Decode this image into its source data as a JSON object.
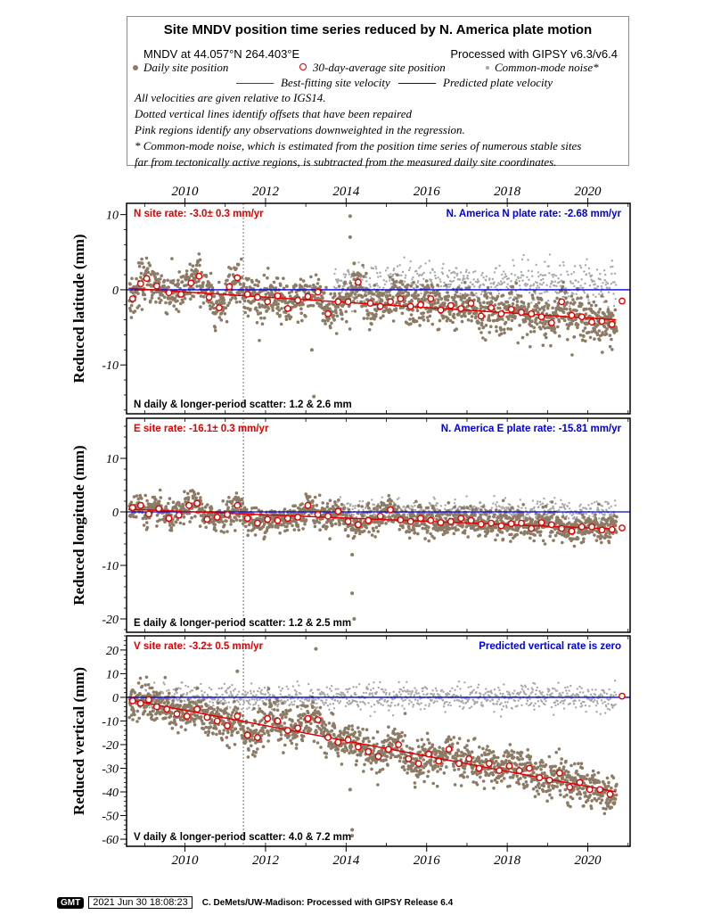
{
  "header": {
    "title": "Site MNDV position time series reduced by N. America plate motion",
    "location": "MNDV at 44.057°N 264.403°E",
    "processed": "Processed with GIPSY v6.3/v6.4",
    "legend": {
      "daily": "Daily site position",
      "avg30": "30-day-average site position",
      "common": "Common-mode noise*",
      "bestfit": "Best-fitting site velocity",
      "predicted": "Predicted plate velocity"
    },
    "notes": [
      "All velocities are given relative to IGS14.",
      "Dotted vertical lines identify offsets that have been repaired",
      "Pink regions identify any observations downweighted in the regression.",
      "* Common-mode noise, which is estimated from the position time series of numerous stable sites",
      "far from tectonically active regions, is subtracted from the measured daily site coordinates."
    ]
  },
  "colors": {
    "daily": "#8c7b65",
    "common": "#a8a8a8",
    "avg": "#e00000",
    "bestfit": "#e00000",
    "plate": "#0000dd",
    "offset_line": "#777777"
  },
  "chart_data": {
    "type": "scatter",
    "x_range": [
      2008.55,
      2021.05
    ],
    "x_ticks": [
      2010,
      2012,
      2014,
      2016,
      2018,
      2020
    ],
    "offset_epochs": [
      2011.45
    ],
    "panels": [
      {
        "id": "north",
        "ylabel": "Reduced latitude (mm)",
        "ylim": [
          -16.5,
          11.5
        ],
        "yticks": [
          10,
          0,
          -10
        ],
        "site_rate": "N site rate:  -3.0± 0.3 mm/yr",
        "plate_rate": "N. America N plate rate: -2.68 mm/yr",
        "scatter_text": "N daily & longer-period scatter:   1.2 &   2.6 mm",
        "plate_line": [
          [
            2008.55,
            0.0
          ],
          [
            2021.05,
            0.0
          ]
        ],
        "fit_line": [
          [
            2008.6,
            0.2
          ],
          [
            2020.7,
            -4.0
          ]
        ],
        "common_mode": true,
        "avg30": [
          [
            2008.7,
            -1.2
          ],
          [
            2008.9,
            0.8
          ],
          [
            2009.05,
            1.5
          ],
          [
            2009.3,
            0.5
          ],
          [
            2009.6,
            -0.4
          ],
          [
            2009.9,
            -0.6
          ],
          [
            2010.15,
            0.9
          ],
          [
            2010.35,
            1.8
          ],
          [
            2010.6,
            -1.0
          ],
          [
            2010.85,
            -2.4
          ],
          [
            2011.1,
            0.4
          ],
          [
            2011.3,
            1.6
          ],
          [
            2011.55,
            -0.6
          ],
          [
            2011.8,
            -1.0
          ],
          [
            2012.05,
            -1.6
          ],
          [
            2012.3,
            -0.8
          ],
          [
            2012.55,
            -2.5
          ],
          [
            2012.8,
            -1.4
          ],
          [
            2013.05,
            -0.9
          ],
          [
            2013.3,
            -0.3
          ],
          [
            2013.55,
            -3.2
          ],
          [
            2013.8,
            -1.6
          ],
          [
            2014.05,
            -1.6
          ],
          [
            2014.3,
            1.0
          ],
          [
            2014.6,
            -1.8
          ],
          [
            2014.85,
            -2.2
          ],
          [
            2015.1,
            -1.6
          ],
          [
            2015.35,
            -1.2
          ],
          [
            2015.6,
            -2.2
          ],
          [
            2015.85,
            -2.0
          ],
          [
            2016.1,
            -1.2
          ],
          [
            2016.35,
            -2.7
          ],
          [
            2016.6,
            -2.1
          ],
          [
            2016.85,
            -2.5
          ],
          [
            2017.1,
            -1.8
          ],
          [
            2017.35,
            -3.5
          ],
          [
            2017.6,
            -2.4
          ],
          [
            2017.85,
            -3.2
          ],
          [
            2018.1,
            -2.6
          ],
          [
            2018.35,
            -3.0
          ],
          [
            2018.6,
            -3.2
          ],
          [
            2018.85,
            -3.6
          ],
          [
            2019.1,
            -4.4
          ],
          [
            2019.35,
            -1.6
          ],
          [
            2019.6,
            -3.4
          ],
          [
            2019.85,
            -3.6
          ],
          [
            2020.1,
            -4.3
          ],
          [
            2020.35,
            -4.2
          ],
          [
            2020.6,
            -4.6
          ],
          [
            2020.85,
            -1.5
          ]
        ],
        "outliers": [
          [
            2014.1,
            9.8
          ],
          [
            2014.1,
            7.0
          ],
          [
            2013.15,
            -8.0
          ],
          [
            2013.2,
            -14.2
          ],
          [
            2014.2,
            3.5
          ]
        ]
      },
      {
        "id": "east",
        "ylabel": "Reduced longitude (mm)",
        "ylim": [
          -22.5,
          17.5
        ],
        "yticks": [
          10,
          0,
          -10,
          -20
        ],
        "site_rate": "E site rate: -16.1± 0.3 mm/yr",
        "plate_rate": "N. America E plate rate: -15.81 mm/yr",
        "scatter_text": "E daily & longer-period scatter:   1.2 &   2.5 mm",
        "plate_line": [
          [
            2008.55,
            0.0
          ],
          [
            2021.05,
            0.0
          ]
        ],
        "fit_line": [
          [
            2008.6,
            0.5
          ],
          [
            2020.7,
            -3.2
          ]
        ],
        "common_mode": true,
        "avg30": [
          [
            2008.7,
            0.8
          ],
          [
            2008.9,
            1.2
          ],
          [
            2009.1,
            -0.4
          ],
          [
            2009.35,
            0.6
          ],
          [
            2009.6,
            -1.2
          ],
          [
            2009.85,
            -0.6
          ],
          [
            2010.1,
            1.2
          ],
          [
            2010.3,
            1.6
          ],
          [
            2010.55,
            -1.4
          ],
          [
            2010.8,
            -1.0
          ],
          [
            2011.05,
            -0.5
          ],
          [
            2011.3,
            1.2
          ],
          [
            2011.55,
            -1.2
          ],
          [
            2011.8,
            -2.1
          ],
          [
            2012.05,
            -1.4
          ],
          [
            2012.3,
            -1.6
          ],
          [
            2012.55,
            -1.2
          ],
          [
            2012.8,
            -1.0
          ],
          [
            2013.05,
            1.2
          ],
          [
            2013.3,
            -0.5
          ],
          [
            2013.55,
            -0.8
          ],
          [
            2013.8,
            0.1
          ],
          [
            2014.05,
            -1.8
          ],
          [
            2014.3,
            -2.4
          ],
          [
            2014.55,
            -1.6
          ],
          [
            2014.85,
            -0.8
          ],
          [
            2015.1,
            0.4
          ],
          [
            2015.35,
            -1.5
          ],
          [
            2015.6,
            -1.8
          ],
          [
            2015.85,
            -1.2
          ],
          [
            2016.1,
            -1.6
          ],
          [
            2016.35,
            -2.0
          ],
          [
            2016.6,
            -1.8
          ],
          [
            2016.85,
            -1.2
          ],
          [
            2017.1,
            -1.6
          ],
          [
            2017.35,
            -2.3
          ],
          [
            2017.6,
            -2.1
          ],
          [
            2017.85,
            -2.6
          ],
          [
            2018.1,
            -2.2
          ],
          [
            2018.35,
            -2.1
          ],
          [
            2018.6,
            -3.1
          ],
          [
            2018.85,
            -2.0
          ],
          [
            2019.1,
            -2.4
          ],
          [
            2019.35,
            -3.1
          ],
          [
            2019.6,
            -3.6
          ],
          [
            2019.85,
            -2.8
          ],
          [
            2020.1,
            -2.8
          ],
          [
            2020.35,
            -3.4
          ],
          [
            2020.6,
            -3.3
          ],
          [
            2020.85,
            -3.0
          ]
        ],
        "outliers": [
          [
            2014.15,
            -8.0
          ],
          [
            2014.15,
            -15.2
          ],
          [
            2014.2,
            -20.0
          ],
          [
            2014.05,
            -4.5
          ]
        ]
      },
      {
        "id": "vertical",
        "ylabel": "Reduced vertical (mm)",
        "ylim": [
          -63,
          26
        ],
        "yticks": [
          20,
          10,
          0,
          -10,
          -20,
          -30,
          -40,
          -50,
          -60
        ],
        "site_rate": "V site rate:  -3.2± 0.5 mm/yr",
        "plate_rate": "Predicted vertical rate is zero",
        "scatter_text": "V daily & longer-period scatter:   4.0 &   7.2 mm",
        "plate_line": [
          [
            2008.55,
            0.0
          ],
          [
            2021.05,
            0.0
          ]
        ],
        "fit_line": [
          [
            2008.6,
            -1.0
          ],
          [
            2020.7,
            -40.0
          ]
        ],
        "common_mode": true,
        "avg30": [
          [
            2008.7,
            -1.5
          ],
          [
            2008.9,
            -2.5
          ],
          [
            2009.1,
            -1.0
          ],
          [
            2009.3,
            -4.0
          ],
          [
            2009.55,
            -5.0
          ],
          [
            2009.8,
            -7.0
          ],
          [
            2010.05,
            -8.0
          ],
          [
            2010.3,
            -5.0
          ],
          [
            2010.55,
            -8.5
          ],
          [
            2010.8,
            -10.0
          ],
          [
            2011.05,
            -12.0
          ],
          [
            2011.3,
            -8.0
          ],
          [
            2011.55,
            -16.0
          ],
          [
            2011.8,
            -17.0
          ],
          [
            2012.05,
            -9.0
          ],
          [
            2012.3,
            -10.0
          ],
          [
            2012.55,
            -14.0
          ],
          [
            2012.8,
            -13.0
          ],
          [
            2013.05,
            -9.0
          ],
          [
            2013.3,
            -9.5
          ],
          [
            2013.55,
            -17.0
          ],
          [
            2013.8,
            -19.0
          ],
          [
            2014.05,
            -18.0
          ],
          [
            2014.3,
            -21.0
          ],
          [
            2014.55,
            -23.0
          ],
          [
            2014.8,
            -25.0
          ],
          [
            2015.05,
            -22.0
          ],
          [
            2015.3,
            -20.0
          ],
          [
            2015.55,
            -26.0
          ],
          [
            2015.8,
            -28.0
          ],
          [
            2016.05,
            -24.0
          ],
          [
            2016.3,
            -27.0
          ],
          [
            2016.55,
            -22.0
          ],
          [
            2016.8,
            -28.0
          ],
          [
            2017.05,
            -26.0
          ],
          [
            2017.3,
            -30.0
          ],
          [
            2017.55,
            -28.0
          ],
          [
            2017.8,
            -31.0
          ],
          [
            2018.05,
            -29.0
          ],
          [
            2018.3,
            -31.0
          ],
          [
            2018.55,
            -30.0
          ],
          [
            2018.8,
            -34.0
          ],
          [
            2019.05,
            -35.0
          ],
          [
            2019.3,
            -32.0
          ],
          [
            2019.55,
            -38.0
          ],
          [
            2019.8,
            -36.0
          ],
          [
            2020.05,
            -39.0
          ],
          [
            2020.3,
            -39.0
          ],
          [
            2020.55,
            -41.0
          ],
          [
            2020.85,
            0.5
          ]
        ],
        "outliers": [
          [
            2013.25,
            20.5
          ],
          [
            2011.3,
            11.0
          ],
          [
            2014.1,
            -39.0
          ],
          [
            2014.15,
            -56.0
          ],
          [
            2014.15,
            -58.5
          ]
        ]
      }
    ]
  },
  "footer": {
    "logo": "GMT",
    "timestamp": "2021 Jun 30 18:08:23",
    "credit": "C. DeMets/UW-Madison: Processed with GIPSY Release 6.4"
  }
}
